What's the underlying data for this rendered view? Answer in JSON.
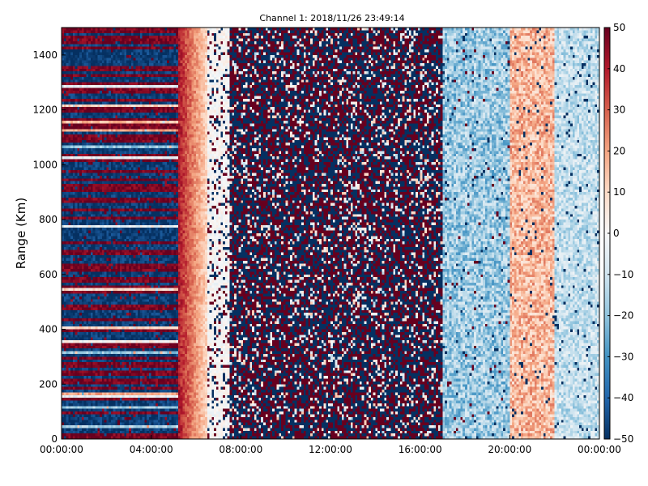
{
  "chart_data": {
    "type": "heatmap",
    "title": "Channel 1: 2018/11/26 23:49:14",
    "xlabel": "",
    "ylabel": "Range (Km)",
    "xlim": [
      "00:00:00",
      "24:00:00"
    ],
    "ylim": [
      0,
      1500
    ],
    "x_ticks": [
      "00:00:00",
      "04:00:00",
      "08:00:00",
      "12:00:00",
      "16:00:00",
      "20:00:00",
      "00:00:00"
    ],
    "y_ticks": [
      0,
      200,
      400,
      600,
      800,
      1000,
      1200,
      1400
    ],
    "colorbar": {
      "min": -50,
      "max": 50,
      "ticks": [
        50,
        40,
        30,
        20,
        10,
        0,
        -10,
        -20,
        -30,
        -40,
        -50
      ],
      "colormap": "RdBu_r",
      "colors": [
        "#053061",
        "#2166ac",
        "#4393c3",
        "#92c5de",
        "#d1e5f0",
        "#f7f7f7",
        "#fddbc7",
        "#f4a582",
        "#d6604d",
        "#b2182b",
        "#67001f"
      ]
    },
    "description_of_regions": [
      {
        "from": "00:00:00",
        "to": "05:15:00",
        "pattern": "horizontal bands alternating near +50 and -50 (saturated)"
      },
      {
        "from": "05:15:00",
        "to": "06:30:00",
        "pattern": "smooth positive values ~10 to 40"
      },
      {
        "from": "06:30:00",
        "to": "07:30:00",
        "pattern": "near-zero values with sparse noise"
      },
      {
        "from": "07:30:00",
        "to": "17:00:00",
        "pattern": "random saturated noise between -50 and +50"
      },
      {
        "from": "17:00:00",
        "to": "20:00:00",
        "pattern": "mostly negative values ~-10 to -30"
      },
      {
        "from": "20:00:00",
        "to": "22:00:00",
        "pattern": "mostly positive values ~10 to 25"
      },
      {
        "from": "22:00:00",
        "to": "24:00:00",
        "pattern": "mostly negative values ~-5 to -20"
      }
    ],
    "grid": false,
    "legend": "none"
  }
}
